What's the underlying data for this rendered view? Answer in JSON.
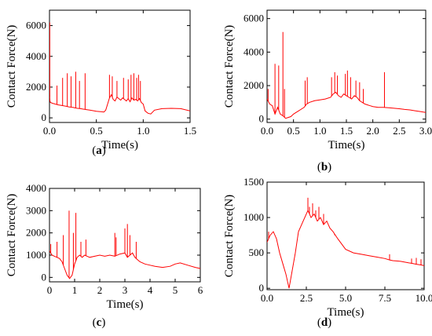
{
  "chart_data": [
    {
      "type": "line",
      "panel_label": "(a)",
      "caption_letter": "a",
      "xlabel": "Time(s)",
      "ylabel": "Contact Force(N)",
      "xlim": [
        0,
        1.5
      ],
      "ylim": [
        -300,
        7000
      ],
      "xticks": [
        0.0,
        0.5,
        1.0,
        1.5
      ],
      "xtick_labels": [
        "0.0",
        "0.5",
        "1.0",
        "1.5"
      ],
      "yticks": [
        0,
        2000,
        4000,
        6000
      ],
      "ytick_labels": [
        "0",
        "2000",
        "4000",
        "6000"
      ],
      "series": [
        {
          "color": "#ff0000",
          "x": [
            0.0,
            0.002,
            0.005,
            0.01,
            0.03,
            0.06,
            0.09,
            0.12,
            0.15,
            0.18,
            0.2,
            0.22,
            0.25,
            0.27,
            0.3,
            0.33,
            0.36,
            0.4,
            0.43,
            0.46,
            0.5,
            0.55,
            0.58,
            0.6,
            0.62,
            0.64,
            0.66,
            0.68,
            0.7,
            0.72,
            0.74,
            0.76,
            0.78,
            0.8,
            0.82,
            0.84,
            0.86,
            0.88,
            0.9,
            0.92,
            0.94,
            0.96,
            0.98,
            1.0,
            1.02,
            1.05,
            1.08,
            1.12,
            1.2,
            1.3,
            1.4,
            1.5
          ],
          "y": [
            6200,
            1500,
            1100,
            1000,
            950,
            900,
            850,
            820,
            780,
            750,
            720,
            700,
            680,
            650,
            620,
            600,
            570,
            530,
            500,
            470,
            430,
            400,
            380,
            500,
            900,
            1300,
            1500,
            1200,
            1100,
            1350,
            1250,
            1150,
            1300,
            1200,
            1100,
            1250,
            1050,
            1300,
            1150,
            1200,
            1100,
            1250,
            1000,
            900,
            450,
            300,
            250,
            500,
            600,
            620,
            600,
            450
          ]
        }
      ],
      "spikes": [
        {
          "x": 0.003,
          "y": 6200
        },
        {
          "x": 0.08,
          "y": 2100
        },
        {
          "x": 0.14,
          "y": 2600
        },
        {
          "x": 0.19,
          "y": 2900
        },
        {
          "x": 0.23,
          "y": 2700
        },
        {
          "x": 0.28,
          "y": 3000
        },
        {
          "x": 0.32,
          "y": 2400
        },
        {
          "x": 0.38,
          "y": 2900
        },
        {
          "x": 0.64,
          "y": 2800
        },
        {
          "x": 0.67,
          "y": 2700
        },
        {
          "x": 0.72,
          "y": 2400
        },
        {
          "x": 0.79,
          "y": 2600
        },
        {
          "x": 0.84,
          "y": 2500
        },
        {
          "x": 0.87,
          "y": 2800
        },
        {
          "x": 0.9,
          "y": 2900
        },
        {
          "x": 0.93,
          "y": 2600
        },
        {
          "x": 0.95,
          "y": 2800
        },
        {
          "x": 0.97,
          "y": 2400
        }
      ]
    },
    {
      "type": "line",
      "panel_label": "(b)",
      "caption_letter": "b",
      "xlabel": "Time(s)",
      "ylabel": "Contact Force(N)",
      "xlim": [
        0,
        3.0
      ],
      "ylim": [
        -200,
        6500
      ],
      "xticks": [
        0.0,
        0.5,
        1.0,
        1.5,
        2.0,
        2.5,
        3.0
      ],
      "xtick_labels": [
        "0.0",
        "0.5",
        "1.0",
        "1.5",
        "2.0",
        "2.5",
        "3.0"
      ],
      "yticks": [
        0,
        2000,
        4000,
        6000
      ],
      "ytick_labels": [
        "0",
        "2000",
        "4000",
        "6000"
      ],
      "series": [
        {
          "color": "#ff0000",
          "x": [
            0.0,
            0.05,
            0.1,
            0.15,
            0.2,
            0.25,
            0.3,
            0.35,
            0.4,
            0.45,
            0.5,
            0.6,
            0.7,
            0.75,
            0.8,
            0.9,
            1.0,
            1.1,
            1.2,
            1.25,
            1.3,
            1.35,
            1.4,
            1.45,
            1.5,
            1.55,
            1.6,
            1.65,
            1.7,
            1.75,
            1.8,
            1.85,
            1.9,
            1.95,
            2.0,
            2.1,
            2.2,
            2.3,
            2.4,
            2.5,
            2.6,
            2.7,
            2.8,
            2.9,
            3.0
          ],
          "y": [
            1200,
            900,
            800,
            300,
            700,
            300,
            200,
            50,
            100,
            150,
            300,
            500,
            700,
            900,
            1000,
            1100,
            1150,
            1200,
            1300,
            1500,
            1600,
            1400,
            1300,
            1500,
            1400,
            1300,
            1200,
            1400,
            1300,
            1100,
            1000,
            900,
            850,
            800,
            750,
            700,
            700,
            680,
            650,
            620,
            580,
            550,
            500,
            450,
            400
          ]
        }
      ],
      "spikes": [
        {
          "x": 0.02,
          "y": 1800
        },
        {
          "x": 0.15,
          "y": 3300
        },
        {
          "x": 0.22,
          "y": 3200
        },
        {
          "x": 0.3,
          "y": 5200
        },
        {
          "x": 0.33,
          "y": 1800
        },
        {
          "x": 0.72,
          "y": 2300
        },
        {
          "x": 0.76,
          "y": 2500
        },
        {
          "x": 1.22,
          "y": 2500
        },
        {
          "x": 1.28,
          "y": 2800
        },
        {
          "x": 1.33,
          "y": 2600
        },
        {
          "x": 1.48,
          "y": 2700
        },
        {
          "x": 1.52,
          "y": 2900
        },
        {
          "x": 1.58,
          "y": 2500
        },
        {
          "x": 1.68,
          "y": 2300
        },
        {
          "x": 1.75,
          "y": 2200
        },
        {
          "x": 1.82,
          "y": 1800
        },
        {
          "x": 2.22,
          "y": 2800
        }
      ]
    },
    {
      "type": "line",
      "panel_label": "(c)",
      "caption_letter": "c",
      "xlabel": "Time(s)",
      "ylabel": "Contact Force(N)",
      "xlim": [
        0,
        6
      ],
      "ylim": [
        -200,
        4000
      ],
      "xticks": [
        0,
        1,
        2,
        3,
        4,
        5,
        6
      ],
      "xtick_labels": [
        "0",
        "1",
        "2",
        "3",
        "4",
        "5",
        "6"
      ],
      "yticks": [
        0,
        1000,
        2000,
        3000,
        4000
      ],
      "ytick_labels": [
        "0",
        "1000",
        "2000",
        "3000",
        "4000"
      ],
      "series": [
        {
          "color": "#ff0000",
          "x": [
            0.0,
            0.1,
            0.2,
            0.3,
            0.4,
            0.5,
            0.6,
            0.7,
            0.8,
            0.9,
            1.0,
            1.1,
            1.2,
            1.3,
            1.4,
            1.5,
            1.6,
            1.8,
            2.0,
            2.2,
            2.4,
            2.6,
            2.8,
            3.0,
            3.1,
            3.2,
            3.3,
            3.4,
            3.5,
            3.6,
            3.8,
            4.0,
            4.2,
            4.5,
            4.8,
            5.0,
            5.2,
            5.5,
            5.8,
            6.0
          ],
          "y": [
            1200,
            1000,
            950,
            900,
            850,
            700,
            400,
            100,
            -50,
            100,
            600,
            900,
            1000,
            900,
            1000,
            950,
            900,
            950,
            1000,
            950,
            1000,
            950,
            1050,
            1100,
            900,
            1000,
            1100,
            900,
            800,
            700,
            600,
            550,
            500,
            450,
            500,
            600,
            650,
            550,
            450,
            400
          ]
        }
      ],
      "spikes": [
        {
          "x": 0.05,
          "y": 1500
        },
        {
          "x": 0.3,
          "y": 1600
        },
        {
          "x": 0.55,
          "y": 1900
        },
        {
          "x": 0.78,
          "y": 3000
        },
        {
          "x": 0.95,
          "y": 2000
        },
        {
          "x": 1.05,
          "y": 2900
        },
        {
          "x": 1.25,
          "y": 1600
        },
        {
          "x": 1.45,
          "y": 1700
        },
        {
          "x": 2.6,
          "y": 2000
        },
        {
          "x": 2.65,
          "y": 1800
        },
        {
          "x": 3.0,
          "y": 2200
        },
        {
          "x": 3.1,
          "y": 2400
        },
        {
          "x": 3.2,
          "y": 1900
        },
        {
          "x": 3.45,
          "y": 1600
        }
      ]
    },
    {
      "type": "line",
      "panel_label": "(d)",
      "caption_letter": "d",
      "xlabel": "Time(s)",
      "ylabel": "Contact Force(N)",
      "xlim": [
        0,
        10
      ],
      "ylim": [
        -20,
        1500
      ],
      "xticks": [
        0.0,
        2.5,
        5.0,
        7.5,
        10.0
      ],
      "xtick_labels": [
        "0.0",
        "2.5",
        "5.0",
        "7.5",
        "10.0"
      ],
      "yticks": [
        0,
        500,
        1000,
        1500
      ],
      "ytick_labels": [
        "0",
        "500",
        "1000",
        "1500"
      ],
      "series": [
        {
          "color": "#ff0000",
          "x": [
            0.0,
            0.2,
            0.4,
            0.6,
            0.8,
            1.0,
            1.2,
            1.4,
            1.6,
            1.8,
            2.0,
            2.2,
            2.4,
            2.6,
            2.8,
            3.0,
            3.2,
            3.4,
            3.6,
            3.8,
            4.0,
            4.2,
            4.5,
            5.0,
            5.5,
            6.0,
            6.5,
            7.0,
            7.5,
            7.8,
            8.0,
            8.5,
            9.0,
            9.3,
            9.5,
            9.8,
            10.0
          ],
          "y": [
            650,
            750,
            800,
            700,
            500,
            350,
            200,
            0,
            250,
            500,
            800,
            900,
            1000,
            1100,
            1000,
            1050,
            950,
            1000,
            900,
            950,
            850,
            800,
            700,
            550,
            500,
            480,
            460,
            440,
            420,
            400,
            390,
            380,
            360,
            350,
            340,
            330,
            320
          ]
        }
      ],
      "spikes": [
        {
          "x": 0.1,
          "y": 800
        },
        {
          "x": 0.3,
          "y": 780
        },
        {
          "x": 2.6,
          "y": 1280
        },
        {
          "x": 2.7,
          "y": 1150
        },
        {
          "x": 2.9,
          "y": 1200
        },
        {
          "x": 3.1,
          "y": 1100
        },
        {
          "x": 3.3,
          "y": 1150
        },
        {
          "x": 3.6,
          "y": 1050
        },
        {
          "x": 4.3,
          "y": 750
        },
        {
          "x": 7.8,
          "y": 480
        },
        {
          "x": 9.2,
          "y": 420
        },
        {
          "x": 9.5,
          "y": 430
        },
        {
          "x": 9.8,
          "y": 410
        }
      ]
    }
  ]
}
